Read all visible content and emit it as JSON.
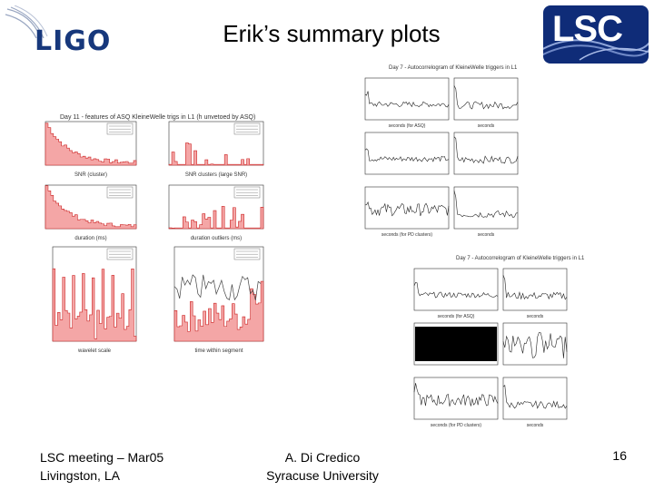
{
  "header": {
    "title": "Erik’s summary plots",
    "left_logo_text": "LIGO",
    "right_logo_text": "LSC"
  },
  "left_panel": {
    "title": "Day 11 - features of ASQ KleineWelle trigs in L1 (h unvetoed by ASQ)",
    "plots": [
      {
        "xlabel": "SNR (cluster)"
      },
      {
        "xlabel": "SNR clusters (large SNR)"
      },
      {
        "xlabel": "duration (ms)"
      },
      {
        "xlabel": "duration outliers (ms)"
      },
      {
        "xlabel": "wavelet scale"
      },
      {
        "xlabel": "time within segment"
      }
    ]
  },
  "top_right_panel": {
    "title": "Day 7 - Autocorrelogram of KleineWelle triggers in L1",
    "xlabels": [
      "seconds (for ASQ)",
      "seconds",
      "seconds (for PD clusters)",
      "seconds"
    ]
  },
  "bottom_right_panel": {
    "title": "Day 7 - Autocorrelogram of KleineWelle triggers in L1",
    "xlabels": [
      "seconds (for ASQ)",
      "seconds",
      "seconds (for PD clusters)",
      "seconds"
    ]
  },
  "footer": {
    "left_line1": "LSC meeting – Mar05",
    "left_line2": "Livingston, LA",
    "center_line1": "A. Di Credico",
    "center_line2": "Syracuse University",
    "page_number": "16"
  },
  "colors": {
    "ligo_blue": "#17387c",
    "lsc_blue": "#0f2c78",
    "histogram_fill": "#f4a6a6",
    "histogram_line": "#cc2222"
  }
}
